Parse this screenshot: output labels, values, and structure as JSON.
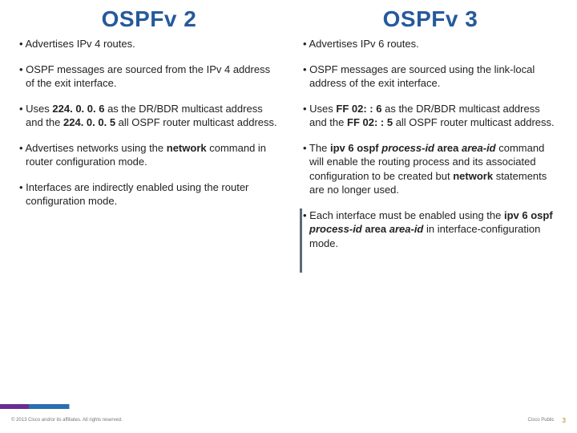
{
  "left": {
    "heading": "OSPFv 2",
    "bullets": [
      [
        {
          "t": "• Advertises IPv 4 routes."
        }
      ],
      [
        {
          "t": "• OSPF messages are sourced from the IPv 4 address of the exit interface."
        }
      ],
      [
        {
          "t": "• Uses "
        },
        {
          "t": "224. 0. 0. 6",
          "b": true
        },
        {
          "t": " as the DR/BDR multicast address and the "
        },
        {
          "t": "224. 0. 0. 5",
          "b": true
        },
        {
          "t": " all OSPF router multicast address."
        }
      ],
      [
        {
          "t": "• Advertises networks using the "
        },
        {
          "t": "network",
          "b": true
        },
        {
          "t": " command in router configuration mode."
        }
      ],
      [
        {
          "t": "• Interfaces are indirectly enabled using the router configuration mode."
        }
      ]
    ]
  },
  "right": {
    "heading": "OSPFv 3",
    "bullets": [
      [
        {
          "t": "• Advertises IPv 6 routes."
        }
      ],
      [
        {
          "t": "• OSPF messages are sourced using the link-local address of the exit interface."
        }
      ],
      [
        {
          "t": "• Uses "
        },
        {
          "t": "FF 02: : 6",
          "b": true
        },
        {
          "t": " as the DR/BDR multicast address and the "
        },
        {
          "t": "FF 02: : 5",
          "b": true
        },
        {
          "t": " all OSPF router multicast address."
        }
      ],
      [
        {
          "t": "• The "
        },
        {
          "t": "ipv 6 ospf ",
          "b": true
        },
        {
          "t": "process-id",
          "i": true,
          "b": true
        },
        {
          "t": " area ",
          "b": true
        },
        {
          "t": "area-id",
          "i": true,
          "b": true
        },
        {
          "t": " command will enable the routing process and its associated configuration to be created but "
        },
        {
          "t": "network",
          "b": true
        },
        {
          "t": " statements are no longer used."
        }
      ],
      [
        {
          "t": "• Each interface must be enabled using the "
        },
        {
          "t": "ipv 6 ospf ",
          "b": true
        },
        {
          "t": "process-id",
          "i": true,
          "b": true
        },
        {
          "t": " area ",
          "b": true
        },
        {
          "t": "area-id",
          "i": true,
          "b": true
        },
        {
          "t": " in interface-configuration mode."
        }
      ]
    ]
  },
  "footer": {
    "copyright": "© 2013 Cisco and/or its affiliates. All rights reserved.",
    "label": "Cisco Public",
    "page": "3"
  }
}
